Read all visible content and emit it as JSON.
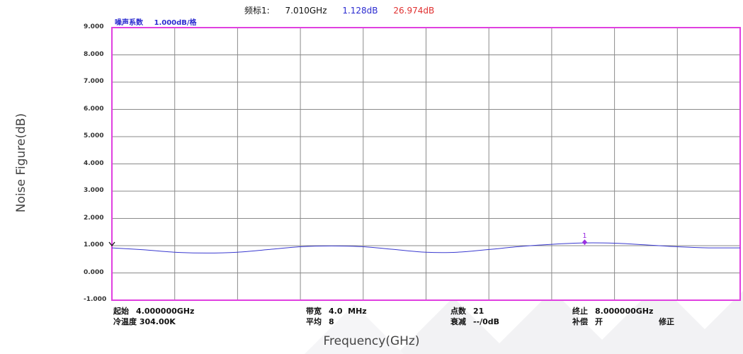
{
  "marker_readout": {
    "label": "频标1:",
    "frequency": "7.010GHz",
    "noise_figure": "1.128dB",
    "gain": "26.974dB"
  },
  "scale": {
    "trace_name": "噪声系数",
    "per_div": "1.000dB/格"
  },
  "axes": {
    "y_label": "Noise Figure(dB)",
    "x_label": "Frequency(GHz)"
  },
  "footer": {
    "start_key": "起始",
    "start_val": "4.000000GHz",
    "cold_temp_key": "冷温度",
    "cold_temp_val": "304.00K",
    "bw_key": "带宽",
    "bw_val": "4.0  MHz",
    "avg_key": "平均",
    "avg_val": "8",
    "points_key": "点数",
    "points_val": "21",
    "atten_key": "衰减",
    "atten_val": "--/0dB",
    "stop_key": "终止",
    "stop_val": "8.000000GHz",
    "comp_key": "补偿",
    "comp_val": "开",
    "corr": "修正"
  },
  "colors": {
    "frame": "#e040e0",
    "trace": "#3a3ad0",
    "marker": "#9b30e0",
    "nf_text": "#2b2bd0",
    "gain_text": "#e03030"
  },
  "chart_data": {
    "type": "line",
    "x": [
      4.0,
      4.2,
      4.4,
      4.6,
      4.8,
      5.0,
      5.2,
      5.4,
      5.6,
      5.8,
      6.0,
      6.2,
      6.4,
      6.6,
      6.8,
      7.0,
      7.2,
      7.4,
      7.6,
      7.8,
      8.0
    ],
    "series": [
      {
        "values": [
          0.92,
          0.85,
          0.76,
          0.73,
          0.76,
          0.86,
          0.96,
          0.99,
          0.96,
          0.86,
          0.76,
          0.76,
          0.86,
          0.97,
          1.05,
          1.1,
          1.09,
          1.03,
          0.96,
          0.92,
          0.92
        ]
      }
    ],
    "xlim": [
      4.0,
      8.0
    ],
    "ylim": [
      -1.0,
      9.0
    ],
    "y_ticks": [
      "9.000",
      "8.000",
      "7.000",
      "6.000",
      "5.000",
      "4.000",
      "3.000",
      "2.000",
      "1.000",
      "0.000",
      "-1.000"
    ],
    "x_divisions": 10,
    "grid": true,
    "marker": {
      "label": "1",
      "x": 7.01,
      "y": 1.128
    },
    "reference_level": 1.0
  }
}
